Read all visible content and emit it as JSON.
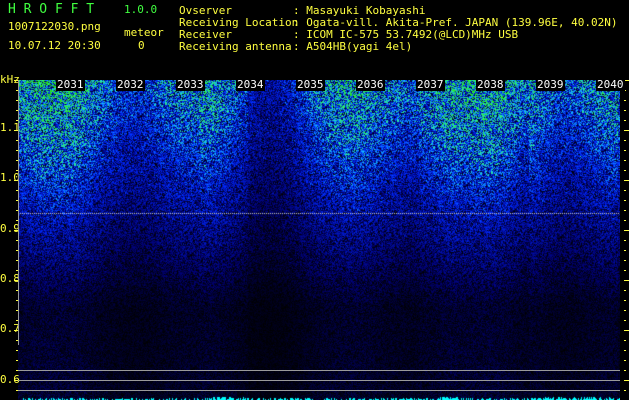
{
  "header": {
    "app_name": "H R O F F T",
    "version": "1.0.0",
    "filename": "1007122030.png",
    "datetime": "10.07.12 20:30",
    "meteor_label": "meteor",
    "meteor_count": "0"
  },
  "info": [
    {
      "label": "Ovserver",
      "value": ": Masayuki Kobayashi"
    },
    {
      "label": "Receiving Location",
      "value": ": Ogata-vill. Akita-Pref. JAPAN (139.96E, 40.02N)"
    },
    {
      "label": "Receiver",
      "value": ": ICOM IC-575 53.7492(@LCD)MHz USB"
    },
    {
      "label": "Receiving antenna",
      "value": ": A504HB(yagi 4el)"
    }
  ],
  "spectrogram": {
    "y_unit": "kHz",
    "y_ticks": [
      "1.1",
      "1.0",
      "0.9",
      "0.8",
      "0.7",
      "0.6"
    ],
    "time_labels": [
      "2031",
      "2032",
      "2033",
      "2034",
      "2035",
      "2036",
      "2037",
      "2038",
      "2039",
      "2040"
    ],
    "colors": {
      "text": "#ffff40",
      "title": "#40ff40",
      "signal_low": "#0000c0",
      "signal_high": "#40ff80",
      "bar": "#00ffff"
    }
  }
}
